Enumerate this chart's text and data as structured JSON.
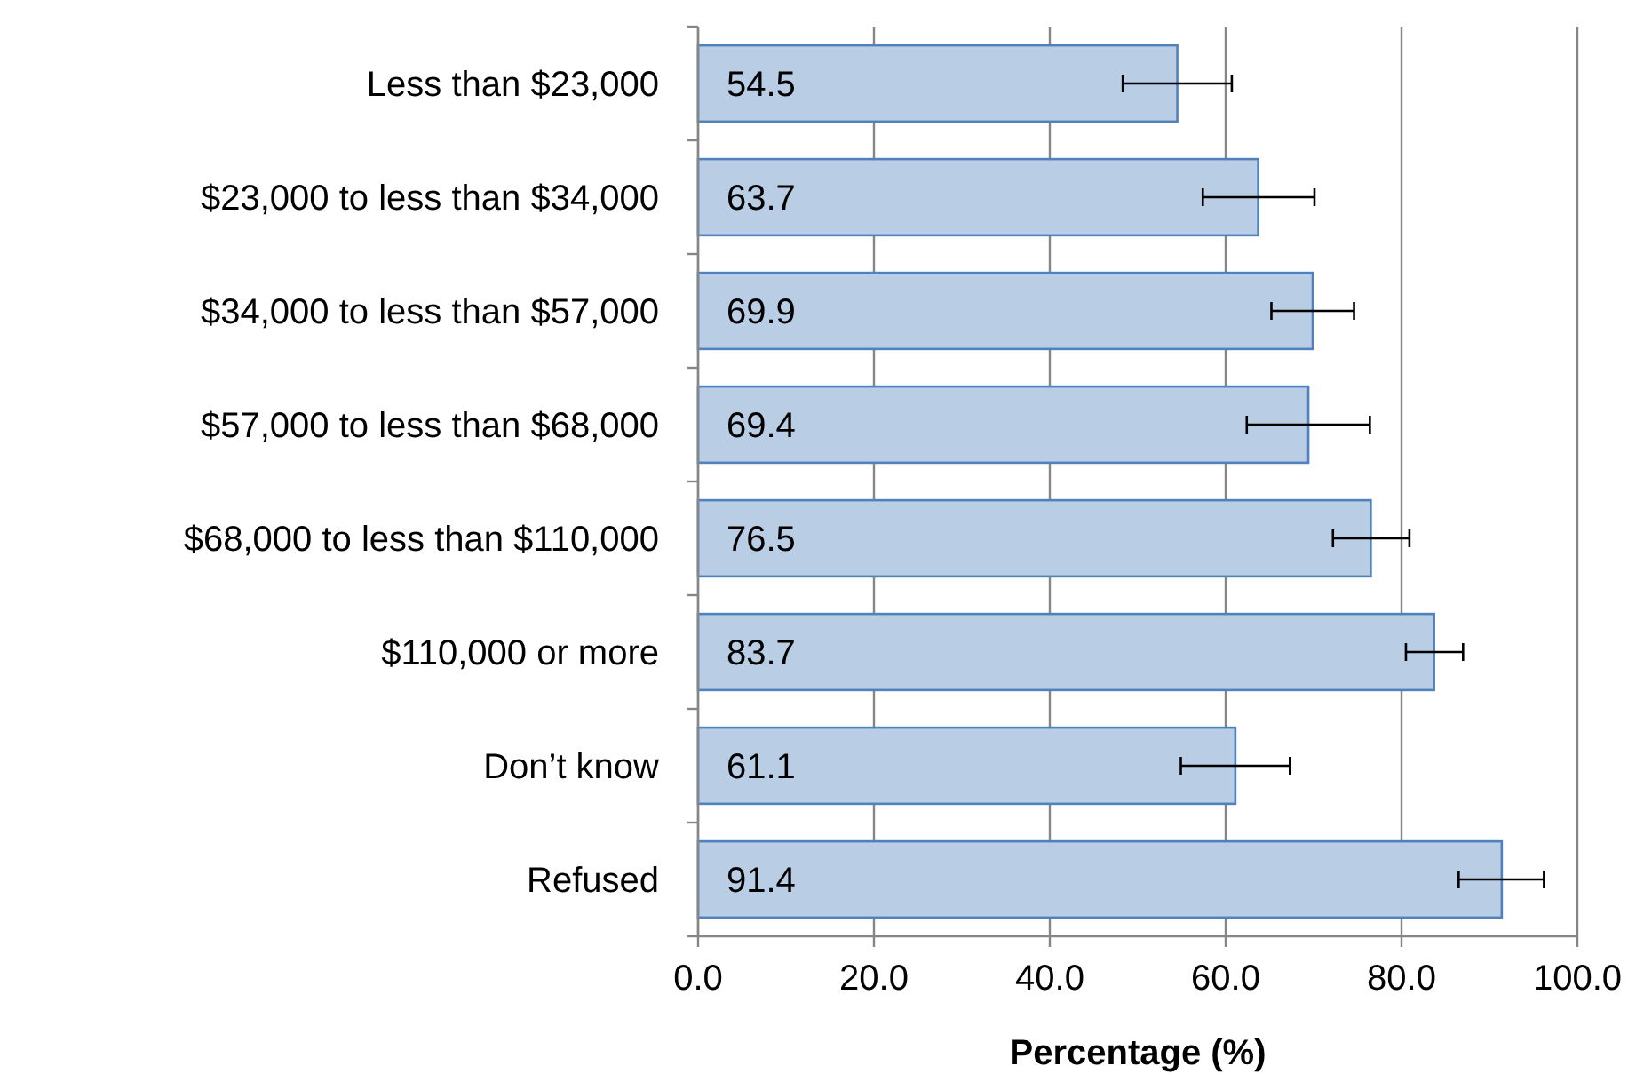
{
  "chart_data": {
    "type": "bar",
    "orientation": "horizontal",
    "xlabel": "Percentage (%)",
    "categories": [
      "Less than $23,000",
      "$23,000 to less than $34,000",
      "$34,000 to less than $57,000",
      "$57,000 to less than $68,000",
      "$68,000 to less than $110,000",
      "$110,000 or more",
      "Don’t know",
      "Refused"
    ],
    "values": [
      54.5,
      63.7,
      69.9,
      69.4,
      76.5,
      83.7,
      61.1,
      91.4
    ],
    "errors": [
      [
        48.3,
        60.7
      ],
      [
        57.4,
        70.1
      ],
      [
        65.2,
        74.6
      ],
      [
        62.4,
        76.4
      ],
      [
        72.2,
        80.9
      ],
      [
        80.5,
        87.0
      ],
      [
        54.9,
        67.3
      ],
      [
        86.5,
        96.2
      ]
    ],
    "color": "#b9cde5",
    "data_labels": true,
    "grid": "x",
    "xlim": [
      0,
      100
    ],
    "xticks": [
      {
        "value": 0,
        "label": "0.0"
      },
      {
        "value": 20,
        "label": "20.0"
      },
      {
        "value": 40,
        "label": "40.0"
      },
      {
        "value": 60,
        "label": "60.0"
      },
      {
        "value": 80,
        "label": "80.0"
      },
      {
        "value": 100,
        "label": "100.0"
      }
    ]
  }
}
